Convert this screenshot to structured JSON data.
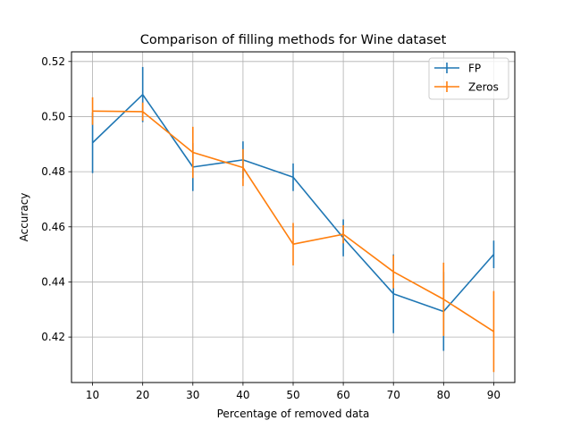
{
  "chart_data": {
    "type": "line",
    "title": "Comparison of filling methods for Wine dataset",
    "xlabel": "Percentage of removed data",
    "ylabel": "Accuracy",
    "x": [
      10,
      20,
      30,
      40,
      50,
      60,
      70,
      80,
      90
    ],
    "xticks": [
      "10",
      "20",
      "30",
      "40",
      "50",
      "60",
      "70",
      "80",
      "90"
    ],
    "yticks": [
      "0.42",
      "0.44",
      "0.46",
      "0.48",
      "0.50",
      "0.52"
    ],
    "yticks_values": [
      0.42,
      0.44,
      0.46,
      0.48,
      0.5,
      0.52
    ],
    "xlim": [
      5.8,
      94.2
    ],
    "ylim": [
      0.4035,
      0.5235
    ],
    "grid": true,
    "legend_position": "top-right",
    "series": [
      {
        "name": "FP",
        "color": "#1f77b4",
        "values": [
          0.4905,
          0.508,
          0.4817,
          0.4843,
          0.478,
          0.456,
          0.4357,
          0.4293,
          0.45
        ],
        "errors": [
          0.011,
          0.01,
          0.0087,
          0.0067,
          0.005,
          0.0067,
          0.0143,
          0.0143,
          0.005
        ]
      },
      {
        "name": "Zeros",
        "color": "#ff7f0e",
        "values": [
          0.502,
          0.5018,
          0.487,
          0.4815,
          0.4537,
          0.4573,
          0.4437,
          0.4337,
          0.422
        ],
        "errors": [
          0.005,
          0.0033,
          0.0093,
          0.0067,
          0.0077,
          0.0033,
          0.006,
          0.0133,
          0.0147
        ]
      }
    ]
  }
}
